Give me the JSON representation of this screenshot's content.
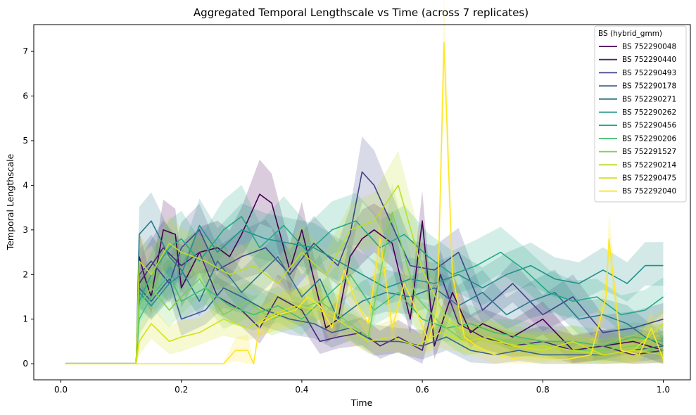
{
  "chart_data": {
    "type": "line",
    "title": "Aggregated Temporal Lengthscale vs Time (across 7 replicates)",
    "xlabel": "Time",
    "ylabel": "Temporal Lengthscale",
    "xlim": [
      -0.045,
      1.045
    ],
    "ylim": [
      -0.36,
      7.6
    ],
    "xticks": [
      0.0,
      0.2,
      0.4,
      0.6,
      0.8,
      1.0
    ],
    "xtick_labels": [
      "0.0",
      "0.2",
      "0.4",
      "0.6",
      "0.8",
      "1.0"
    ],
    "yticks": [
      0,
      1,
      2,
      3,
      4,
      5,
      6,
      7
    ],
    "ytick_labels": [
      "0",
      "1",
      "2",
      "3",
      "4",
      "5",
      "6",
      "7"
    ],
    "grid": false,
    "legend": {
      "title": "BS (hybrid_gmm)",
      "placement": "top-right"
    },
    "band": "shaded range across replicates",
    "series": [
      {
        "name": "BS 752290048",
        "color": "#440154",
        "x": [
          0.008,
          0.125,
          0.13,
          0.14,
          0.15,
          0.17,
          0.19,
          0.2,
          0.23,
          0.26,
          0.28,
          0.3,
          0.33,
          0.35,
          0.38,
          0.4,
          0.44,
          0.46,
          0.48,
          0.5,
          0.52,
          0.55,
          0.58,
          0.6,
          0.62,
          0.65,
          0.68,
          0.7,
          0.75,
          0.8,
          0.85,
          0.9,
          0.95,
          1.0
        ],
        "y": [
          0.0,
          0.0,
          2.4,
          1.9,
          1.5,
          3.0,
          2.9,
          1.7,
          2.5,
          2.6,
          2.4,
          2.9,
          3.8,
          3.6,
          2.1,
          3.0,
          0.8,
          1.0,
          2.4,
          2.8,
          3.0,
          2.7,
          1.0,
          3.2,
          0.4,
          1.6,
          0.7,
          0.9,
          0.6,
          1.0,
          0.3,
          0.4,
          0.5,
          0.3
        ]
      },
      {
        "name": "BS 752290440",
        "color": "#482475",
        "x": [
          0.008,
          0.125,
          0.13,
          0.15,
          0.17,
          0.2,
          0.23,
          0.26,
          0.3,
          0.33,
          0.36,
          0.4,
          0.43,
          0.46,
          0.5,
          0.53,
          0.56,
          0.6,
          0.63,
          0.66,
          0.7,
          0.75,
          0.8,
          0.85,
          0.9,
          0.95,
          1.0
        ],
        "y": [
          0.0,
          0.0,
          1.8,
          2.2,
          2.6,
          2.2,
          2.5,
          1.5,
          1.2,
          0.8,
          1.5,
          1.2,
          0.5,
          0.6,
          0.7,
          0.4,
          0.6,
          0.3,
          2.0,
          0.9,
          0.6,
          0.4,
          0.5,
          0.3,
          0.4,
          0.2,
          0.3
        ]
      },
      {
        "name": "BS 752290493",
        "color": "#414487",
        "x": [
          0.008,
          0.125,
          0.13,
          0.15,
          0.18,
          0.2,
          0.23,
          0.26,
          0.3,
          0.34,
          0.38,
          0.42,
          0.46,
          0.48,
          0.5,
          0.52,
          0.54,
          0.58,
          0.62,
          0.66,
          0.7,
          0.75,
          0.8,
          0.85,
          0.9,
          0.95,
          1.0
        ],
        "y": [
          0.0,
          0.0,
          2.0,
          2.3,
          1.8,
          2.6,
          3.0,
          2.1,
          2.4,
          2.6,
          2.0,
          2.7,
          2.2,
          2.9,
          4.3,
          4.0,
          3.4,
          2.2,
          2.1,
          2.5,
          1.2,
          1.8,
          1.1,
          1.5,
          0.7,
          0.8,
          1.0
        ]
      },
      {
        "name": "BS 752290178",
        "color": "#355f8d",
        "x": [
          0.008,
          0.125,
          0.13,
          0.15,
          0.18,
          0.2,
          0.24,
          0.27,
          0.3,
          0.34,
          0.38,
          0.42,
          0.45,
          0.48,
          0.52,
          0.56,
          0.6,
          0.64,
          0.68,
          0.72,
          0.76,
          0.8,
          0.85,
          0.9,
          0.95,
          1.0
        ],
        "y": [
          0.0,
          0.0,
          1.7,
          1.4,
          1.9,
          1.0,
          1.2,
          1.7,
          1.5,
          1.2,
          1.0,
          0.9,
          0.7,
          0.8,
          0.5,
          0.5,
          0.4,
          0.6,
          0.3,
          0.2,
          0.3,
          0.2,
          0.2,
          0.2,
          0.3,
          0.4
        ]
      },
      {
        "name": "BS 752290271",
        "color": "#2a788e",
        "x": [
          0.008,
          0.125,
          0.13,
          0.15,
          0.18,
          0.2,
          0.23,
          0.26,
          0.3,
          0.33,
          0.36,
          0.4,
          0.43,
          0.46,
          0.5,
          0.54,
          0.58,
          0.62,
          0.66,
          0.7,
          0.74,
          0.78,
          0.82,
          0.86,
          0.9,
          0.94,
          0.97,
          1.0
        ],
        "y": [
          0.0,
          0.0,
          2.9,
          3.2,
          2.4,
          2.1,
          1.4,
          2.3,
          1.6,
          2.0,
          2.4,
          1.5,
          1.9,
          1.0,
          1.4,
          1.6,
          1.5,
          1.7,
          1.3,
          1.6,
          1.1,
          1.4,
          1.6,
          1.0,
          1.1,
          0.9,
          0.6,
          0.4
        ]
      },
      {
        "name": "BS 752290262",
        "color": "#21918c",
        "x": [
          0.008,
          0.125,
          0.13,
          0.15,
          0.18,
          0.2,
          0.23,
          0.26,
          0.3,
          0.34,
          0.38,
          0.42,
          0.46,
          0.5,
          0.54,
          0.58,
          0.62,
          0.66,
          0.7,
          0.74,
          0.78,
          0.82,
          0.86,
          0.9,
          0.94,
          0.97,
          1.0
        ],
        "y": [
          0.0,
          0.0,
          1.6,
          1.3,
          1.8,
          2.0,
          3.1,
          2.5,
          3.0,
          2.8,
          2.7,
          2.6,
          2.3,
          2.0,
          1.7,
          1.9,
          1.8,
          2.0,
          1.7,
          2.0,
          2.2,
          1.9,
          1.8,
          2.1,
          1.8,
          2.2,
          2.2
        ]
      },
      {
        "name": "BS 752290456",
        "color": "#22a884",
        "x": [
          0.008,
          0.125,
          0.13,
          0.15,
          0.18,
          0.2,
          0.23,
          0.27,
          0.3,
          0.33,
          0.37,
          0.41,
          0.45,
          0.49,
          0.53,
          0.57,
          0.61,
          0.65,
          0.69,
          0.73,
          0.77,
          0.81,
          0.85,
          0.89,
          0.93,
          0.97,
          1.0
        ],
        "y": [
          0.0,
          0.0,
          1.4,
          2.0,
          2.6,
          2.8,
          2.3,
          3.0,
          3.3,
          2.6,
          3.1,
          2.5,
          3.0,
          3.2,
          2.6,
          2.9,
          2.4,
          2.0,
          2.2,
          2.5,
          2.1,
          1.6,
          1.4,
          1.5,
          1.1,
          1.2,
          1.5
        ]
      },
      {
        "name": "BS 752290206",
        "color": "#43bf71",
        "x": [
          0.008,
          0.125,
          0.13,
          0.15,
          0.18,
          0.2,
          0.24,
          0.28,
          0.32,
          0.36,
          0.4,
          0.44,
          0.48,
          0.52,
          0.56,
          0.6,
          0.64,
          0.68,
          0.72,
          0.76,
          0.8,
          0.85,
          0.9,
          0.95,
          1.0
        ],
        "y": [
          0.0,
          0.0,
          1.0,
          1.5,
          2.0,
          1.4,
          1.7,
          1.3,
          1.1,
          1.3,
          1.0,
          1.5,
          2.0,
          1.2,
          1.6,
          1.0,
          0.8,
          0.9,
          0.7,
          0.6,
          0.5,
          0.5,
          0.4,
          0.6,
          0.5
        ]
      },
      {
        "name": "BS 752291527",
        "color": "#7ad151",
        "x": [
          0.008,
          0.125,
          0.13,
          0.15,
          0.18,
          0.2,
          0.23,
          0.27,
          0.31,
          0.35,
          0.39,
          0.43,
          0.47,
          0.51,
          0.55,
          0.59,
          0.63,
          0.67,
          0.71,
          0.75,
          0.8,
          0.85,
          0.9,
          0.95,
          1.0
        ],
        "y": [
          0.0,
          0.0,
          1.3,
          1.7,
          1.2,
          1.5,
          1.9,
          1.1,
          1.4,
          1.0,
          1.2,
          1.4,
          1.0,
          0.6,
          3.4,
          1.5,
          0.9,
          0.5,
          0.6,
          0.5,
          0.4,
          0.3,
          0.3,
          0.4,
          0.3
        ]
      },
      {
        "name": "BS 752290214",
        "color": "#bddf26",
        "x": [
          0.008,
          0.125,
          0.13,
          0.15,
          0.18,
          0.2,
          0.24,
          0.28,
          0.32,
          0.36,
          0.4,
          0.44,
          0.48,
          0.52,
          0.56,
          0.6,
          0.64,
          0.68,
          0.72,
          0.76,
          0.8,
          0.85,
          0.9,
          0.95,
          1.0
        ],
        "y": [
          0.0,
          0.0,
          2.3,
          2.0,
          2.7,
          2.5,
          2.3,
          2.0,
          2.2,
          1.8,
          2.5,
          2.0,
          3.0,
          3.2,
          4.0,
          2.1,
          1.0,
          0.6,
          0.5,
          0.4,
          0.4,
          0.3,
          0.2,
          0.3,
          0.2
        ]
      },
      {
        "name": "BS 752290475",
        "color": "#d2e21b",
        "x": [
          0.008,
          0.125,
          0.13,
          0.15,
          0.18,
          0.2,
          0.23,
          0.27,
          0.31,
          0.35,
          0.39,
          0.43,
          0.47,
          0.51,
          0.55,
          0.59,
          0.63,
          0.67,
          0.71,
          0.75,
          0.8,
          0.85,
          0.9,
          0.95,
          1.0
        ],
        "y": [
          0.0,
          0.0,
          0.5,
          0.9,
          0.5,
          0.6,
          0.7,
          1.0,
          0.8,
          1.1,
          1.3,
          1.2,
          0.9,
          0.5,
          0.6,
          0.4,
          0.7,
          0.5,
          0.6,
          0.4,
          0.3,
          0.5,
          0.2,
          0.3,
          0.9
        ]
      },
      {
        "name": "BS 752292040",
        "color": "#fde725",
        "x": [
          0.008,
          0.125,
          0.27,
          0.29,
          0.31,
          0.32,
          0.33,
          0.36,
          0.39,
          0.41,
          0.43,
          0.45,
          0.47,
          0.49,
          0.51,
          0.53,
          0.55,
          0.57,
          0.59,
          0.61,
          0.625,
          0.636,
          0.65,
          0.67,
          0.69,
          0.72,
          0.76,
          0.8,
          0.84,
          0.88,
          0.905,
          0.91,
          0.93,
          0.96,
          0.98,
          1.0
        ],
        "y": [
          0.0,
          0.0,
          0.0,
          0.3,
          0.3,
          0.0,
          0.9,
          1.1,
          1.2,
          1.5,
          1.3,
          0.8,
          2.1,
          1.4,
          0.9,
          2.8,
          0.8,
          1.8,
          1.2,
          0.5,
          1.2,
          7.2,
          2.0,
          0.6,
          0.4,
          0.2,
          0.1,
          0.1,
          0.1,
          0.2,
          1.5,
          2.8,
          0.3,
          0.2,
          0.8,
          0.1
        ]
      }
    ]
  }
}
